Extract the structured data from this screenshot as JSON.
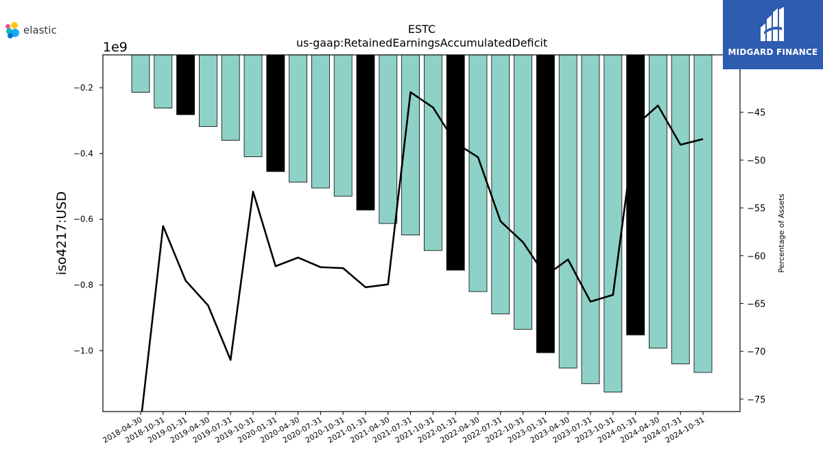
{
  "branding": {
    "left_logo_text": "elastic",
    "right_logo_text": "MIDGARD FINANCE",
    "right_logo_bg": "#2d5cb0"
  },
  "chart_data": {
    "type": "bar",
    "title": "ESTC",
    "subtitle": "us-gaap:RetainedEarningsAccumulatedDeficit",
    "ylabel": "iso4217:USD",
    "y2label": "Percentage of Assets",
    "offset_label": "1e9",
    "categories": [
      "2018-04-30",
      "2018-10-31",
      "2019-01-31",
      "2019-04-30",
      "2019-07-31",
      "2019-10-31",
      "2020-01-31",
      "2020-04-30",
      "2020-07-31",
      "2020-10-31",
      "2021-01-31",
      "2021-04-30",
      "2021-07-31",
      "2021-10-31",
      "2022-01-31",
      "2022-04-30",
      "2022-07-31",
      "2022-10-31",
      "2023-01-31",
      "2023-04-30",
      "2023-07-31",
      "2023-10-31",
      "2024-01-31",
      "2024-04-30",
      "2024-07-31",
      "2024-10-31"
    ],
    "y_ticks": [
      -0.2,
      -0.4,
      -0.6,
      -0.8,
      -1.0
    ],
    "y_tick_labels": [
      "−0.2",
      "−0.4",
      "−0.6",
      "−0.8",
      "−1.0"
    ],
    "y2_ticks": [
      -45,
      -50,
      -55,
      -60,
      -65,
      -70,
      -75
    ],
    "y2_tick_labels": [
      "−45",
      "−50",
      "−55",
      "−60",
      "−65",
      "−70",
      "−75"
    ],
    "ylim": [
      -1.185,
      -0.1
    ],
    "y2lim": [
      -76.3,
      -39.0
    ],
    "series": [
      {
        "type": "bar",
        "values": [
          -0.214,
          -0.262,
          -0.282,
          -0.318,
          -0.36,
          -0.41,
          -0.455,
          -0.487,
          -0.505,
          -0.53,
          -0.572,
          -0.613,
          -0.648,
          -0.695,
          -0.755,
          -0.82,
          -0.888,
          -0.935,
          -1.006,
          -1.053,
          -1.1,
          -1.126,
          -0.952,
          -0.992,
          -1.04,
          -1.066
        ],
        "highlight": [
          false,
          false,
          true,
          false,
          false,
          false,
          true,
          false,
          false,
          false,
          true,
          false,
          false,
          false,
          true,
          false,
          false,
          false,
          true,
          false,
          false,
          false,
          true,
          false,
          false,
          false
        ]
      },
      {
        "type": "line",
        "axis": "right",
        "values": [
          -77.5,
          -56.9,
          -62.6,
          -65.2,
          -70.9,
          -53.3,
          -61.1,
          -60.2,
          -61.2,
          -61.3,
          -63.3,
          -63.0,
          -42.9,
          -44.5,
          -48.2,
          -49.7,
          -56.4,
          -58.6,
          -62.1,
          -60.4,
          -64.8,
          -64.1,
          -46.4,
          -44.3,
          -48.4,
          -47.8
        ]
      }
    ],
    "colors": {
      "bar": "#8ed1c6",
      "bar_highlight": "#000000",
      "line": "#000000"
    }
  }
}
